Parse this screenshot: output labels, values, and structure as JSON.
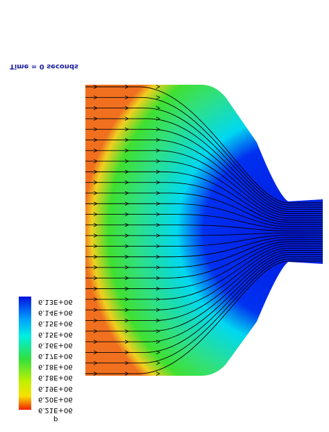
{
  "annotation": "Time = 0 seconds",
  "legend": {
    "variable": "p",
    "labels": [
      "6.13E+06",
      "6.14E+06",
      "6.15E+06",
      "6.15E+06",
      "6.16E+06",
      "6.17E+06",
      "6.18E+06",
      "6.18E+06",
      "6.19E+06",
      "6.20E+06",
      "6.21E+06"
    ]
  }
}
